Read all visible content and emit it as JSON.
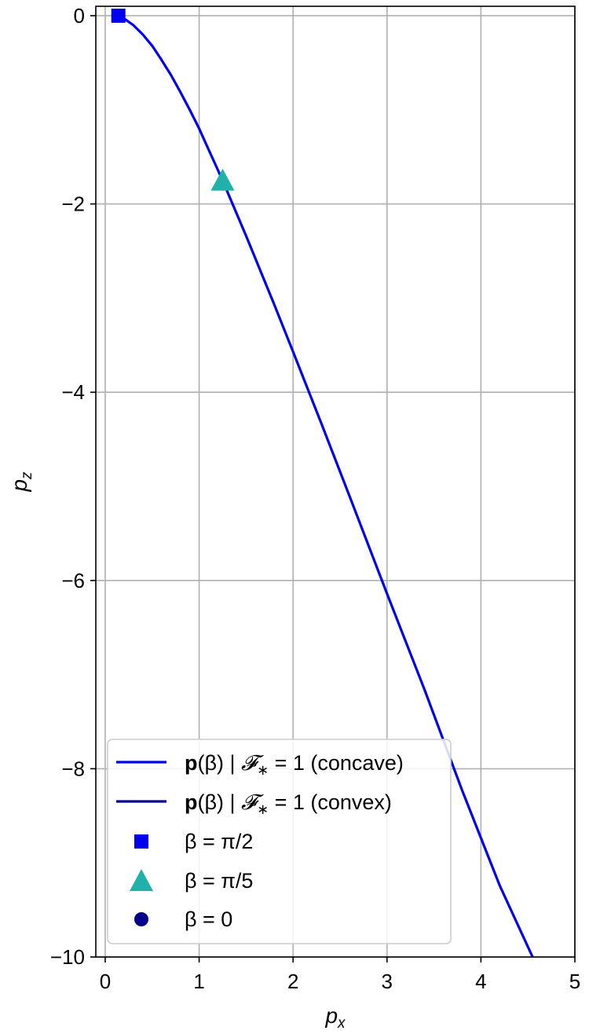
{
  "chart_data": {
    "type": "line",
    "xlabel": {
      "base": "p",
      "sub": "x"
    },
    "ylabel": {
      "base": "p",
      "sub": "z"
    },
    "xlim": [
      -0.1,
      5
    ],
    "ylim": [
      -10,
      0.1
    ],
    "xticks": [
      0,
      1,
      2,
      3,
      4,
      5
    ],
    "xtick_labels": [
      "0",
      "1",
      "2",
      "3",
      "4",
      "5"
    ],
    "yticks": [
      0,
      -2,
      -4,
      -6,
      -8,
      -10
    ],
    "ytick_labels": [
      "0",
      "−2",
      "−4",
      "−6",
      "−8",
      "−10"
    ],
    "grid": true,
    "legend_position": "lower-left",
    "series": [
      {
        "kind": "line",
        "color": "#0000ee",
        "x": [
          0.14,
          0.2,
          0.3,
          0.4,
          0.5,
          0.6,
          0.7,
          0.8,
          0.9,
          1.0,
          1.1,
          1.2,
          1.3,
          1.5,
          1.8,
          2.0,
          2.3,
          2.6,
          3.0,
          3.4,
          3.8,
          4.2,
          4.55
        ],
        "y": [
          0.0,
          -0.03,
          -0.1,
          -0.2,
          -0.32,
          -0.47,
          -0.63,
          -0.81,
          -1.0,
          -1.2,
          -1.42,
          -1.64,
          -1.87,
          -2.34,
          -3.07,
          -3.57,
          -4.33,
          -5.1,
          -6.14,
          -7.16,
          -8.23,
          -9.24,
          -10.0
        ]
      }
    ],
    "markers": [
      {
        "shape": "square",
        "color": "#0000ee",
        "x": 0.14,
        "y": 0.0
      },
      {
        "shape": "triangle",
        "color": "#20b2aa",
        "x": 1.25,
        "y": -1.75
      }
    ],
    "legend": [
      {
        "kind": "line",
        "color": "#0000ee",
        "label_bold": "p",
        "label_rest": "(β) | ",
        "label_f": "𝓕",
        "label_star": "∗",
        "label_tail": " = 1 (concave)"
      },
      {
        "kind": "line",
        "color": "#00008b",
        "label_bold": "p",
        "label_rest": "(β) | ",
        "label_f": "𝓕",
        "label_star": "∗",
        "label_tail": " = 1 (convex)"
      },
      {
        "kind": "square",
        "color": "#0000ee",
        "label": "β = π/2"
      },
      {
        "kind": "triangle",
        "color": "#20b2aa",
        "label": "β = π/5"
      },
      {
        "kind": "circle",
        "color": "#00008b",
        "label": "β = 0"
      }
    ]
  }
}
